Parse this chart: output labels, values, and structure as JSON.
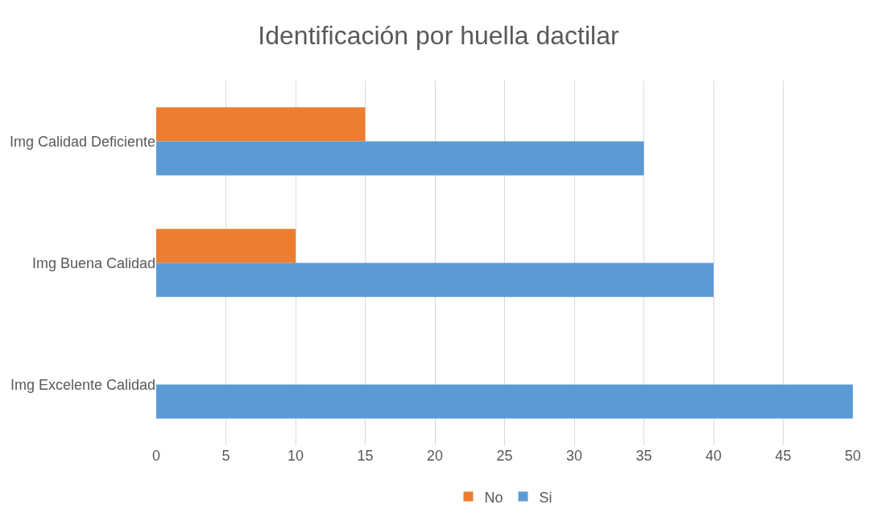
{
  "chart_data": {
    "type": "bar",
    "orientation": "horizontal",
    "title": "Identificación por huella dactilar",
    "categories": [
      "Img Calidad Deficiente",
      "Img Buena Calidad",
      "Img Excelente Calidad"
    ],
    "series": [
      {
        "name": "No",
        "color": "#ed7d31",
        "values": [
          15,
          10,
          0
        ]
      },
      {
        "name": "Si",
        "color": "#5b9bd5",
        "values": [
          35,
          40,
          50
        ]
      }
    ],
    "xlim": [
      0,
      50
    ],
    "xticks": [
      0,
      5,
      10,
      15,
      20,
      25,
      30,
      35,
      40,
      45,
      50
    ],
    "grid": "x",
    "legend": "bottom"
  }
}
